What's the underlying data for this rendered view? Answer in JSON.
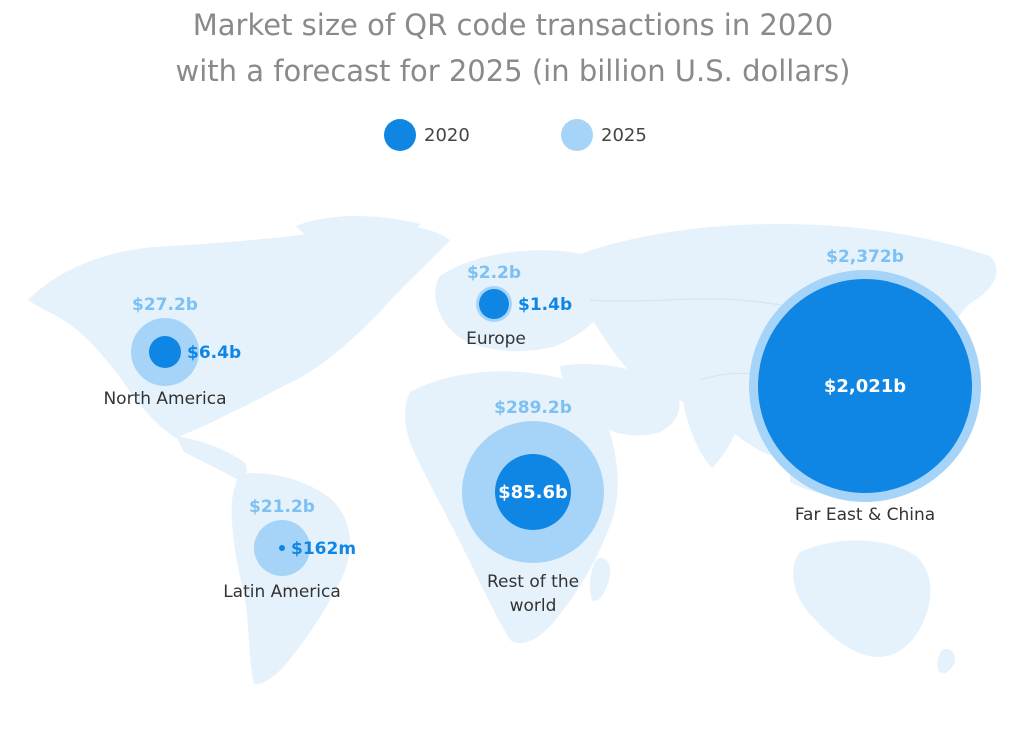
{
  "chart_data": {
    "type": "bubble-map",
    "title_line1": "Market size of QR code transactions in 2020",
    "title_line2": "with a forecast for 2025 (in billion U.S. dollars)",
    "unit": "billion U.S. dollars",
    "legend": [
      {
        "name": "2020",
        "color": "#0f86e3"
      },
      {
        "name": "2025",
        "color": "#a5d4f8"
      }
    ],
    "regions": [
      {
        "name": "North America",
        "label_lines": [
          "North America"
        ],
        "value_2020": 6.4,
        "value_2025": 27.2,
        "label_2020": "$6.4b",
        "label_2025": "$27.2b"
      },
      {
        "name": "Europe",
        "label_lines": [
          "Europe"
        ],
        "value_2020": 1.4,
        "value_2025": 2.2,
        "label_2020": "$1.4b",
        "label_2025": "$2.2b"
      },
      {
        "name": "Latin America",
        "label_lines": [
          "Latin America"
        ],
        "value_2020": 0.162,
        "value_2025": 21.2,
        "label_2020": "$162m",
        "label_2025": "$21.2b"
      },
      {
        "name": "Rest of the world",
        "label_lines": [
          "Rest of the",
          "world"
        ],
        "value_2020": 85.6,
        "value_2025": 289.2,
        "label_2020": "$85.6b",
        "label_2025": "$289.2b"
      },
      {
        "name": "Far East & China",
        "label_lines": [
          "Far East & China"
        ],
        "value_2020": 2021,
        "value_2025": 2372,
        "label_2020": "$2,021b",
        "label_2025": "$2,372b"
      }
    ]
  }
}
